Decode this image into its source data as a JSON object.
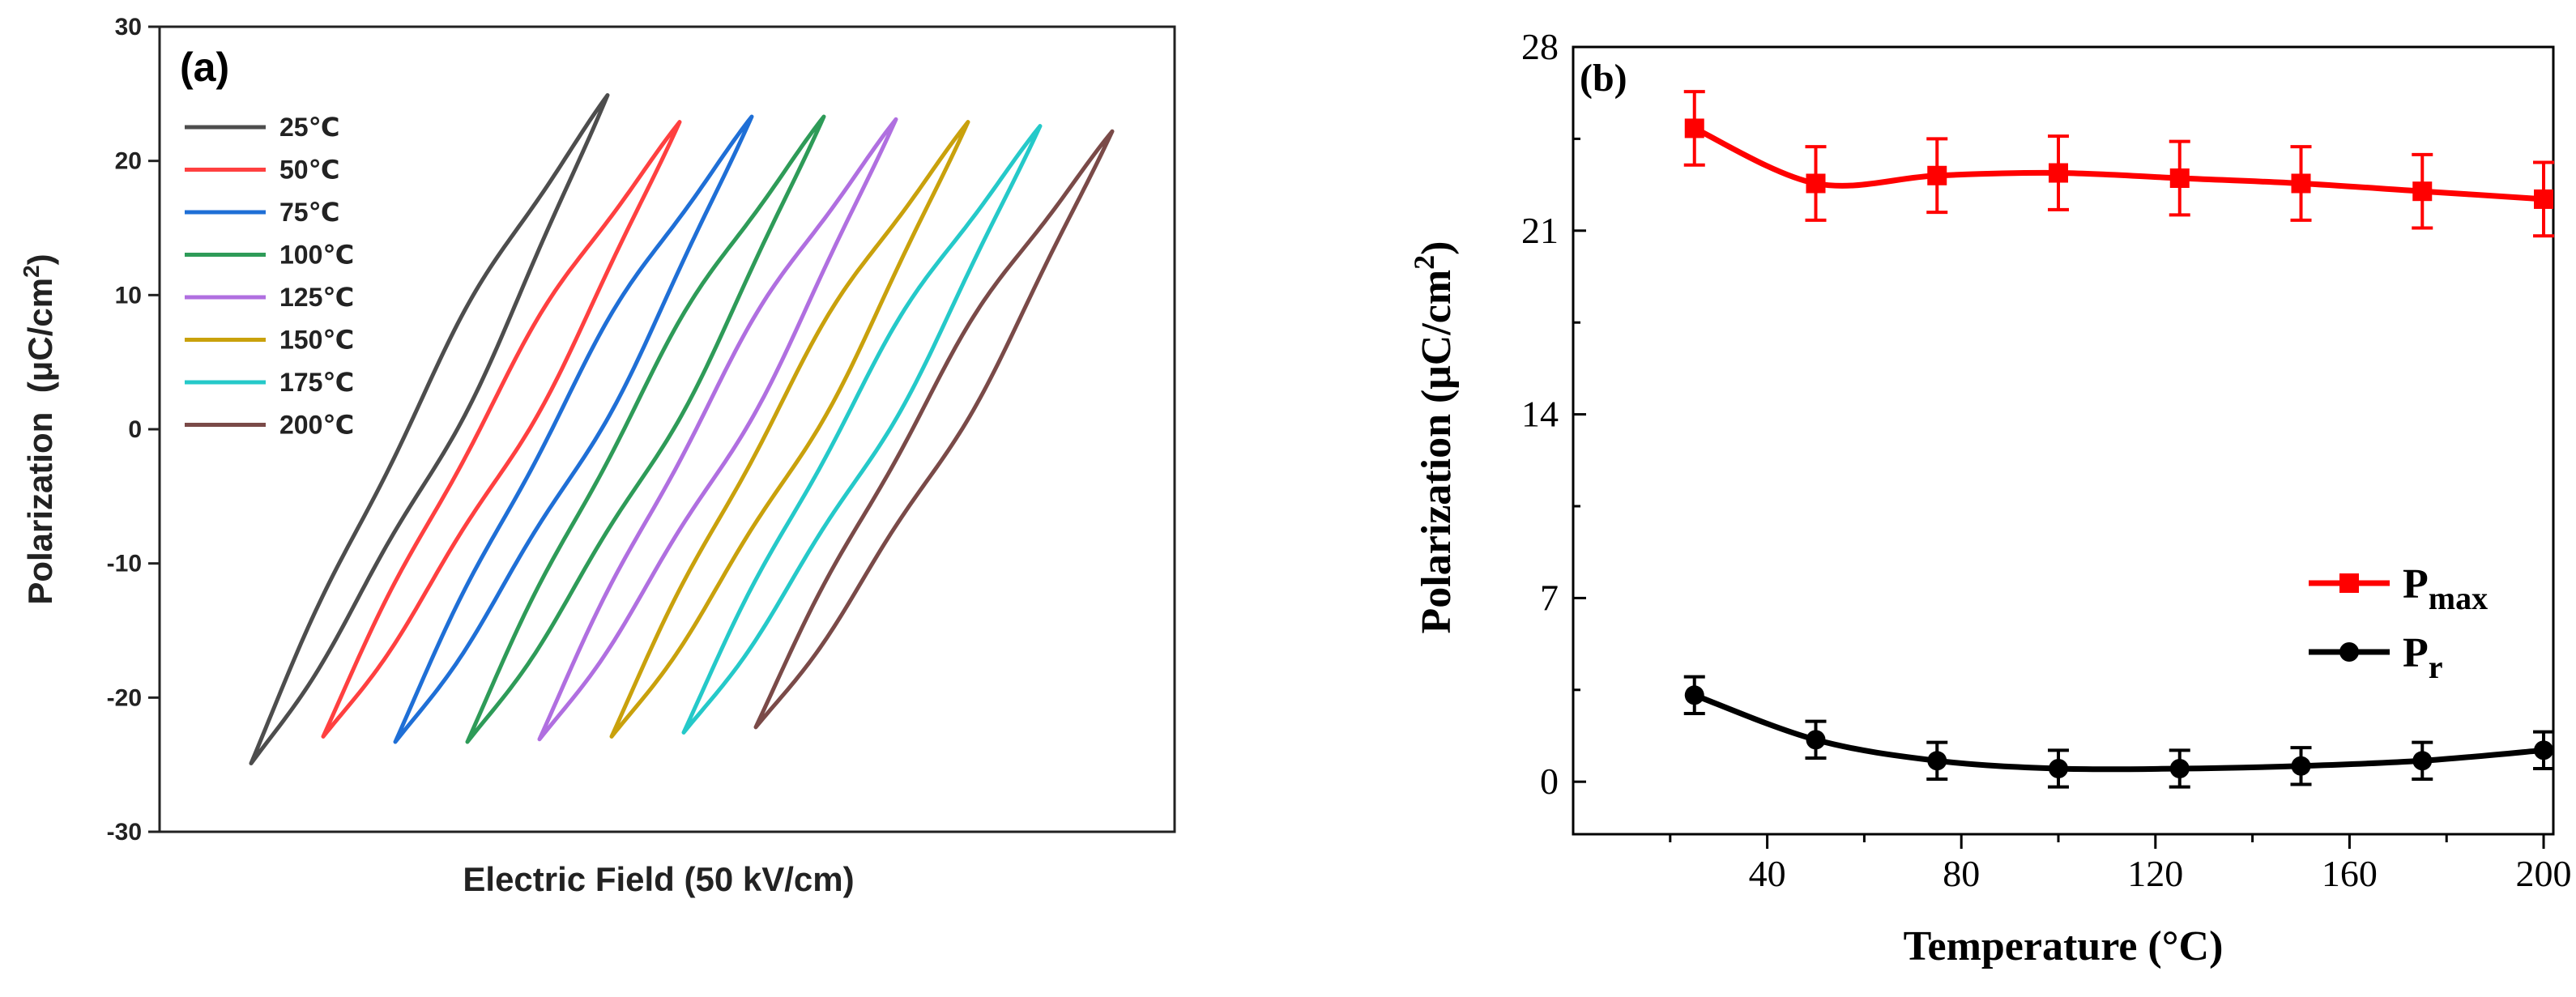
{
  "chart_data": [
    {
      "type": "line",
      "panel_label": "(a)",
      "title": "",
      "xlabel": "Electric Field (50 kV/cm)",
      "ylabel_main": "Polarization  (μC/cm",
      "ylabel_sup": "2",
      "ylabel_end": ")",
      "ylim": [
        -30,
        30
      ],
      "yticks": [
        -30,
        -20,
        -10,
        0,
        10,
        20,
        30
      ],
      "ytick_labels": [
        "-30",
        "-20",
        "-10",
        "0",
        "10",
        "20",
        "30"
      ],
      "x_ticks_shown": false,
      "legend_position": "top-left",
      "series": [
        {
          "name": "25℃",
          "color": "#4d4d4d",
          "p_max": 24.9,
          "p_min": -24.9
        },
        {
          "name": "50℃",
          "color": "#ff4040",
          "p_max": 22.9,
          "p_min": -22.9
        },
        {
          "name": "75℃",
          "color": "#1f6fd6",
          "p_max": 23.3,
          "p_min": -23.3
        },
        {
          "name": "100℃",
          "color": "#2e9b58",
          "p_max": 23.3,
          "p_min": -23.3
        },
        {
          "name": "125℃",
          "color": "#b06fe0",
          "p_max": 23.1,
          "p_min": -23.1
        },
        {
          "name": "150℃",
          "color": "#c9a10c",
          "p_max": 22.9,
          "p_min": -22.9
        },
        {
          "name": "175℃",
          "color": "#25c9c9",
          "p_max": 22.6,
          "p_min": -22.6
        },
        {
          "name": "200℃",
          "color": "#7a4a48",
          "p_max": 22.2,
          "p_min": -22.2
        }
      ]
    },
    {
      "type": "line",
      "panel_label": "(b)",
      "title": "",
      "xlabel": "Temperature (°C)",
      "ylabel_main": "Polarization (μC/cm",
      "ylabel_sup": "2",
      "ylabel_end": ")",
      "xlim": [
        0,
        202
      ],
      "ylim": [
        -2,
        28
      ],
      "xticks": [
        40,
        80,
        120,
        160,
        200
      ],
      "xtick_labels": [
        "40",
        "80",
        "120",
        "160",
        "200"
      ],
      "yticks": [
        0,
        7,
        14,
        21,
        28
      ],
      "ytick_labels": [
        "0",
        "7",
        "14",
        "21",
        "28"
      ],
      "legend_position": "lower-right",
      "x": [
        25,
        50,
        75,
        100,
        125,
        150,
        175,
        200
      ],
      "series": [
        {
          "name": "P",
          "subscript": "max",
          "color": "#ff0000",
          "marker": "square",
          "values": [
            24.9,
            22.8,
            23.1,
            23.2,
            23.0,
            22.8,
            22.5,
            22.2
          ],
          "errors": [
            1.4,
            1.4,
            1.4,
            1.4,
            1.4,
            1.4,
            1.4,
            1.4
          ]
        },
        {
          "name": "P",
          "subscript": "r",
          "color": "#000000",
          "marker": "circle",
          "values": [
            3.3,
            1.6,
            0.8,
            0.5,
            0.5,
            0.6,
            0.8,
            1.2
          ],
          "errors": [
            0.7,
            0.7,
            0.7,
            0.7,
            0.7,
            0.7,
            0.7,
            0.7
          ]
        }
      ]
    }
  ]
}
